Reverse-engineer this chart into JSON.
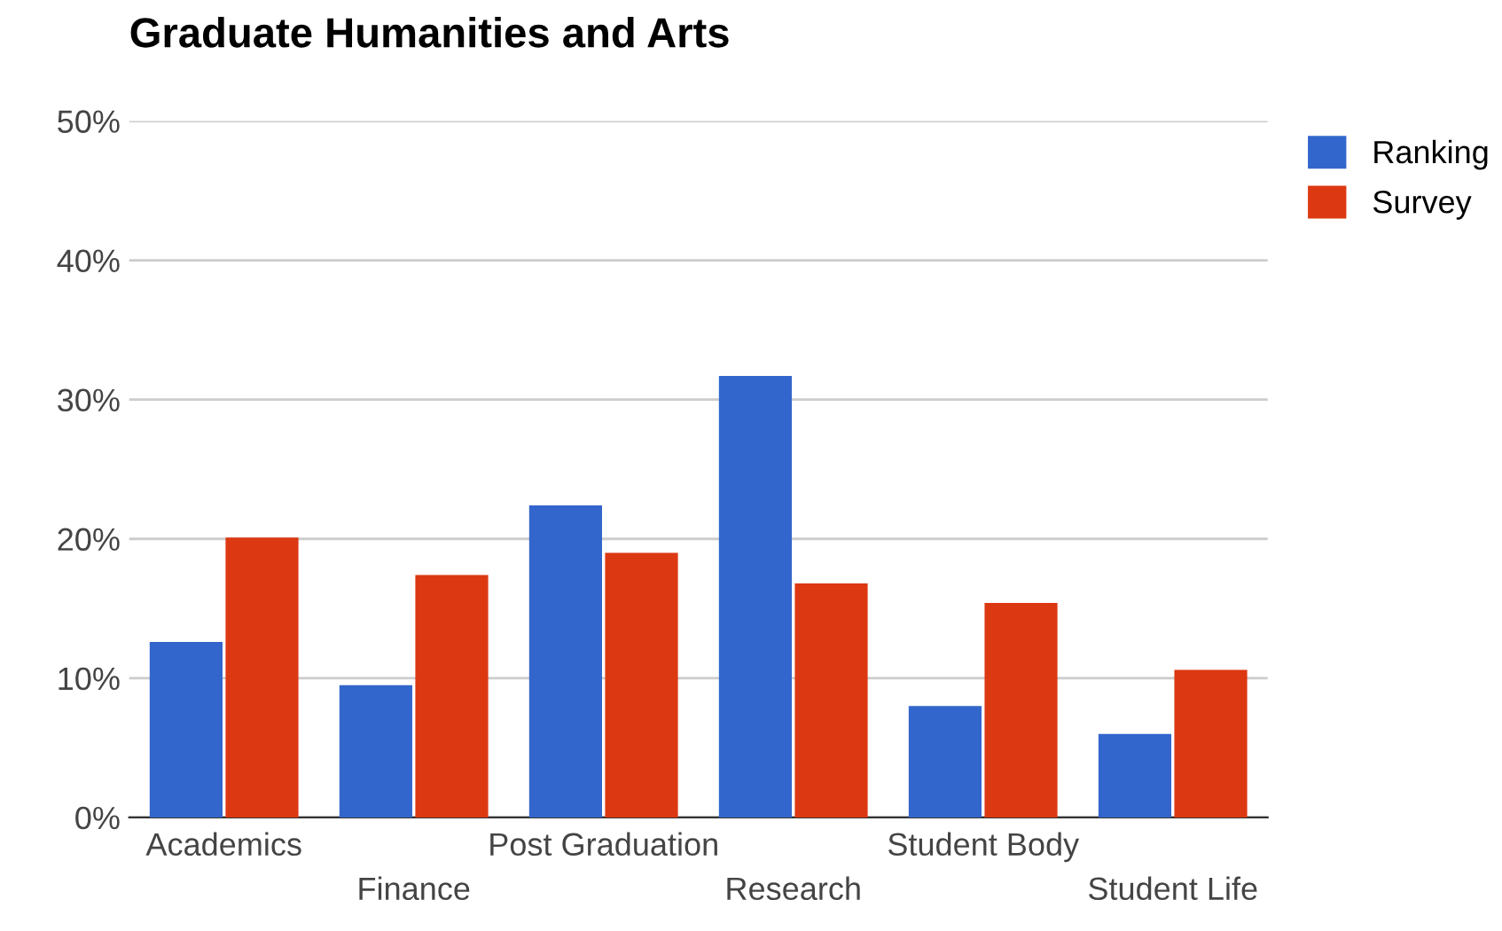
{
  "chart_data": {
    "type": "bar",
    "title": "Graduate Humanities and Arts",
    "categories": [
      "Academics",
      "Finance",
      "Post Graduation",
      "Research",
      "Student Body",
      "Student Life"
    ],
    "series": [
      {
        "name": "Ranking",
        "color": "#3366cc",
        "values": [
          12.6,
          9.5,
          22.4,
          31.7,
          8.0,
          6.0
        ]
      },
      {
        "name": "Survey",
        "color": "#dc3912",
        "values": [
          20.1,
          17.4,
          19.0,
          16.8,
          15.4,
          10.6
        ]
      }
    ],
    "ylim": [
      0,
      50
    ],
    "yticks": [
      {
        "value": 0,
        "label": "0%"
      },
      {
        "value": 10,
        "label": "10%"
      },
      {
        "value": 20,
        "label": "20%"
      },
      {
        "value": 30,
        "label": "30%"
      },
      {
        "value": 40,
        "label": "40%"
      },
      {
        "value": 50,
        "label": "50%"
      }
    ],
    "grid": "y",
    "legend": "top right"
  }
}
